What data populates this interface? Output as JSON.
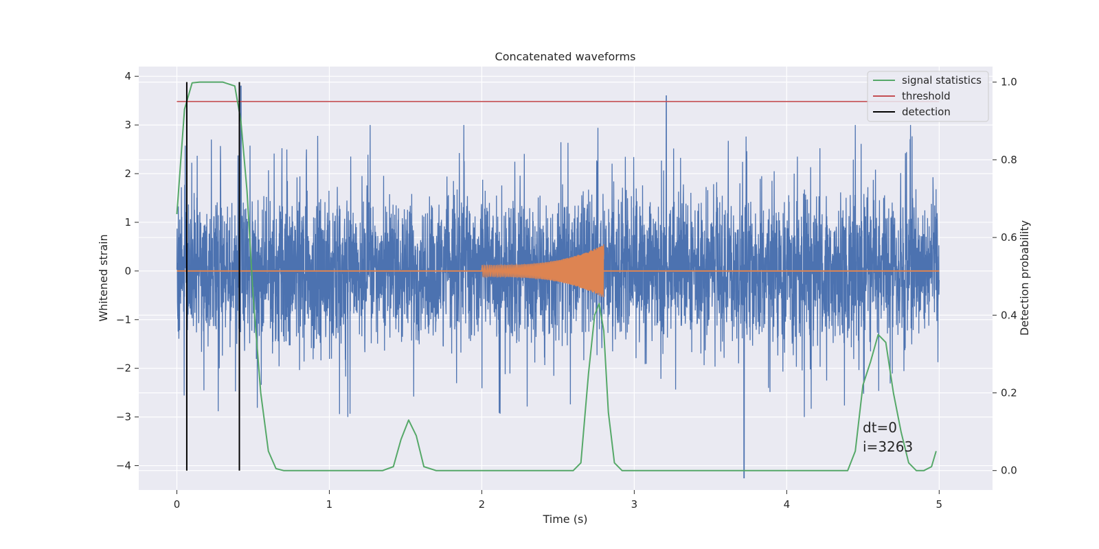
{
  "chart_data": {
    "type": "line",
    "title": "Concatenated waveforms",
    "xlabel": "Time (s)",
    "ylabel": "Whitened strain",
    "y2label": "Detection probability",
    "xlim": [
      -0.25,
      5.35
    ],
    "ylim": [
      -4.5,
      4.2
    ],
    "y2lim": [
      -0.05,
      1.04
    ],
    "x_ticks": [
      "0",
      "1",
      "2",
      "3",
      "4",
      "5"
    ],
    "y_ticks": [
      "−4",
      "−3",
      "−2",
      "−1",
      "0",
      "1",
      "2",
      "3",
      "4"
    ],
    "y2_ticks": [
      "0.0",
      "0.2",
      "0.4",
      "0.6",
      "0.8",
      "1.0"
    ],
    "grid": true,
    "legend_position": "top-right",
    "colors": {
      "noise": "#4c72b0",
      "waveform": "#dd8452",
      "statistic": "#55a868",
      "threshold": "#c44e52",
      "detection": "#000000",
      "background": "#eaeaf2",
      "grid": "#ffffff"
    },
    "series": [
      {
        "role": "noise",
        "axis": "left",
        "x_range": [
          0,
          5
        ],
        "typical_range": [
          -2.2,
          2.3
        ],
        "max_value": 3.8,
        "min_value": -4.25
      },
      {
        "role": "waveform",
        "axis": "left",
        "x_range": [
          2.0,
          2.8
        ],
        "amplitude": [
          0.12,
          0.55
        ]
      },
      {
        "name": "signal statistics",
        "axis": "right",
        "x": [
          0.0,
          0.05,
          0.1,
          0.15,
          0.2,
          0.3,
          0.38,
          0.42,
          0.46,
          0.5,
          0.55,
          0.6,
          0.65,
          0.7,
          1.0,
          1.35,
          1.42,
          1.47,
          1.52,
          1.57,
          1.62,
          1.7,
          2.0,
          2.6,
          2.65,
          2.7,
          2.74,
          2.77,
          2.8,
          2.83,
          2.87,
          2.92,
          3.5,
          4.4,
          4.45,
          4.5,
          4.55,
          4.6,
          4.65,
          4.7,
          4.75,
          4.8,
          4.85,
          4.9,
          4.95,
          4.98
        ],
        "y": [
          0.66,
          0.93,
          0.998,
          1.0,
          1.0,
          1.0,
          0.99,
          0.9,
          0.72,
          0.45,
          0.2,
          0.05,
          0.005,
          0.0,
          0.0,
          0.0,
          0.01,
          0.08,
          0.13,
          0.09,
          0.01,
          0.0,
          0.0,
          0.0,
          0.02,
          0.25,
          0.4,
          0.43,
          0.36,
          0.15,
          0.02,
          0.0,
          0.0,
          0.0,
          0.05,
          0.22,
          0.28,
          0.35,
          0.33,
          0.2,
          0.1,
          0.02,
          0.0,
          0.0,
          0.01,
          0.05
        ]
      },
      {
        "name": "threshold",
        "axis": "right",
        "x": [
          0,
          5
        ],
        "y": [
          0.95,
          0.95
        ]
      },
      {
        "name": "detection",
        "axis": "right",
        "x": [
          0.065,
          0.41
        ],
        "y_range": [
          0.0,
          1.0
        ]
      }
    ],
    "annotations": [
      "dt=0",
      "i=3263"
    ]
  }
}
